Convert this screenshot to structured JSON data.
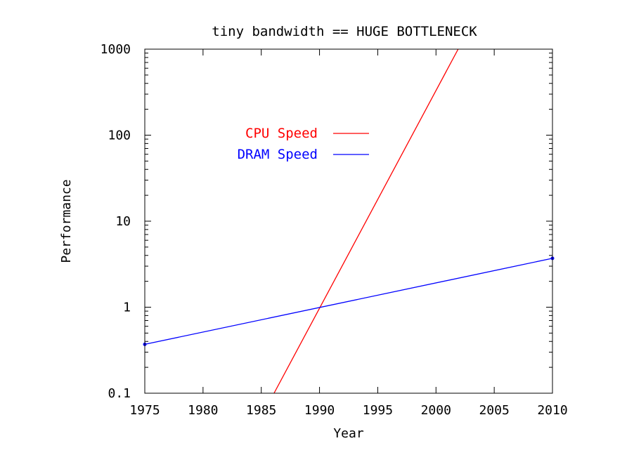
{
  "chart_data": {
    "type": "line",
    "title": "tiny bandwidth == HUGE BOTTLENECK",
    "xlabel": "Year",
    "ylabel": "Performance",
    "xlim": [
      1975,
      2010
    ],
    "ylim": [
      0.1,
      1000
    ],
    "y_scale": "log",
    "grid": false,
    "legend_position": "top-left",
    "x_ticks": [
      "1975",
      "1980",
      "1985",
      "1990",
      "1995",
      "2000",
      "2005",
      "2010"
    ],
    "y_ticks": [
      "0.1",
      "1",
      "10",
      "100",
      "1000"
    ],
    "series": [
      {
        "name": "CPU Speed",
        "color": "#ff0000",
        "x": [
          1986.1,
          2001.9
        ],
        "y": [
          0.1,
          1000
        ]
      },
      {
        "name": "DRAM Speed",
        "color": "#0000ff",
        "x": [
          1975,
          2010
        ],
        "y": [
          0.37,
          3.7
        ]
      }
    ]
  }
}
